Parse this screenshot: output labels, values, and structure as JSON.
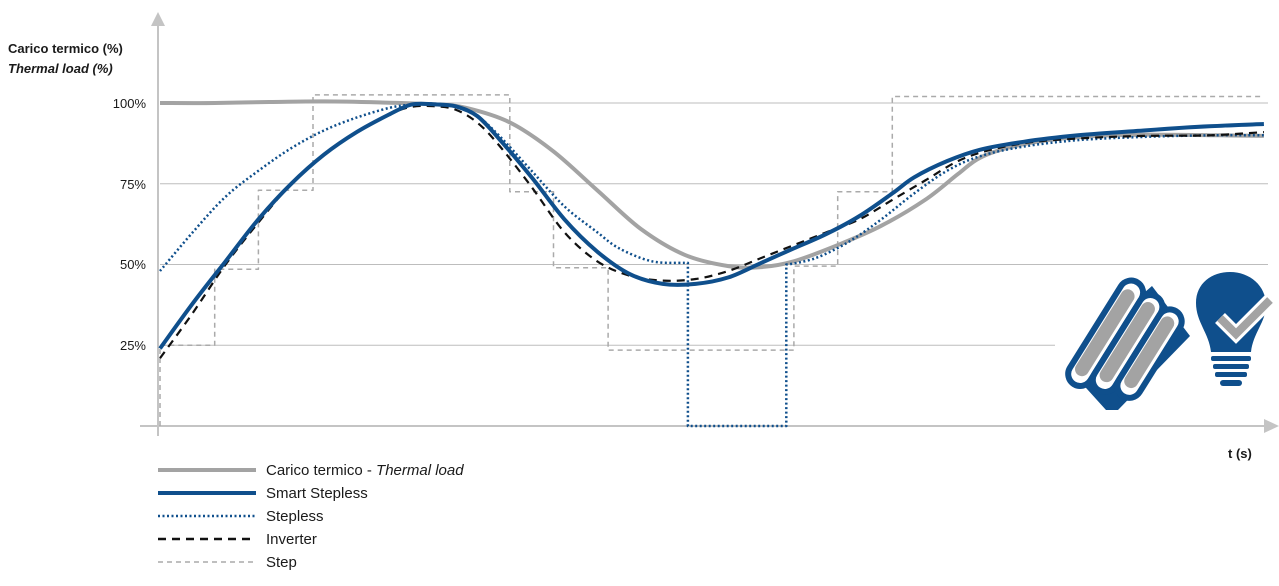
{
  "chart_data": {
    "type": "line",
    "ylabel": "Carico termico (%)",
    "ylabel_en": "Thermal load (%)",
    "xlabel": "t (s)",
    "yticks": [
      "100%",
      "75%",
      "50%",
      "25%"
    ],
    "ylim": [
      0,
      100
    ],
    "grid": true,
    "legend_placement": "bottom-left",
    "series": [
      {
        "name": "Carico termico",
        "name_en": "Thermal load",
        "style": "solid-thick",
        "color": "#a3a3a3",
        "points": [
          [
            0,
            100
          ],
          [
            5,
            100
          ],
          [
            10,
            100.3
          ],
          [
            15,
            100.5
          ],
          [
            20,
            100.2
          ],
          [
            25,
            99.6
          ],
          [
            28,
            98.5
          ],
          [
            32,
            94
          ],
          [
            36,
            85
          ],
          [
            40,
            73
          ],
          [
            44,
            61
          ],
          [
            48,
            53
          ],
          [
            52,
            49.5
          ],
          [
            55,
            49.2
          ],
          [
            58,
            51
          ],
          [
            62,
            56
          ],
          [
            66,
            62
          ],
          [
            70,
            70
          ],
          [
            73,
            78
          ],
          [
            75,
            83
          ],
          [
            78,
            86.5
          ],
          [
            82,
            88.8
          ],
          [
            87,
            90
          ],
          [
            92,
            90.2
          ],
          [
            97,
            90
          ],
          [
            101,
            89.8
          ]
        ]
      },
      {
        "name": "Smart Stepless",
        "style": "solid-thick",
        "color": "#0f4f8c",
        "points": [
          [
            0,
            24
          ],
          [
            3,
            38
          ],
          [
            6,
            51
          ],
          [
            9,
            64
          ],
          [
            12,
            75
          ],
          [
            15,
            84
          ],
          [
            18,
            91
          ],
          [
            21,
            96.5
          ],
          [
            23,
            99.5
          ],
          [
            25,
            99.6
          ],
          [
            27,
            99
          ],
          [
            29,
            96
          ],
          [
            31,
            89
          ],
          [
            34,
            77
          ],
          [
            37,
            64
          ],
          [
            40,
            54
          ],
          [
            43,
            47
          ],
          [
            46,
            44
          ],
          [
            49,
            44
          ],
          [
            52,
            46
          ],
          [
            55,
            50.5
          ],
          [
            58,
            55
          ],
          [
            61,
            59.5
          ],
          [
            64,
            65
          ],
          [
            67,
            72
          ],
          [
            69,
            77
          ],
          [
            72,
            82
          ],
          [
            75,
            85.5
          ],
          [
            79,
            88
          ],
          [
            84,
            90
          ],
          [
            90,
            91.5
          ],
          [
            96,
            92.8
          ],
          [
            101,
            93.5
          ]
        ]
      },
      {
        "name": "Stepless",
        "style": "dotted",
        "color": "#0f4f8c",
        "points": [
          [
            0,
            48
          ],
          [
            3,
            60
          ],
          [
            6,
            71
          ],
          [
            9,
            79
          ],
          [
            12,
            86
          ],
          [
            15,
            91.5
          ],
          [
            18,
            95.5
          ],
          [
            21,
            98.5
          ],
          [
            23,
            99.5
          ],
          [
            25,
            99.8
          ],
          [
            27,
            99
          ],
          [
            29,
            96
          ],
          [
            31,
            90
          ],
          [
            34,
            79
          ],
          [
            37,
            68
          ],
          [
            40,
            60
          ],
          [
            42,
            55
          ],
          [
            45,
            51
          ],
          [
            48,
            50.5
          ],
          [
            48.3,
            0
          ],
          [
            57.3,
            0
          ],
          [
            57.5,
            50
          ],
          [
            60,
            52
          ],
          [
            63,
            57
          ],
          [
            66,
            64
          ],
          [
            69,
            72
          ],
          [
            72,
            79
          ],
          [
            75,
            83.5
          ],
          [
            79,
            86.5
          ],
          [
            84,
            88.5
          ],
          [
            90,
            89.5
          ],
          [
            96,
            90
          ],
          [
            101,
            90
          ]
        ],
        "vertical_drop": {
          "from_x": 48.3,
          "to_x": 57.3,
          "to_value": 0
        }
      },
      {
        "name": "Inverter",
        "style": "dashed",
        "color": "#111111",
        "points": [
          [
            0,
            21
          ],
          [
            3,
            35
          ],
          [
            6,
            50
          ],
          [
            9,
            63
          ],
          [
            12,
            75
          ],
          [
            15,
            84
          ],
          [
            18,
            91
          ],
          [
            21,
            96.5
          ],
          [
            23,
            98.8
          ],
          [
            25,
            99
          ],
          [
            27,
            98
          ],
          [
            29,
            94
          ],
          [
            31,
            87
          ],
          [
            34,
            74
          ],
          [
            37,
            60
          ],
          [
            40,
            51
          ],
          [
            43,
            46.5
          ],
          [
            46,
            45
          ],
          [
            49,
            45.5
          ],
          [
            52,
            48
          ],
          [
            55,
            52
          ],
          [
            58,
            56
          ],
          [
            61,
            60
          ],
          [
            64,
            64
          ],
          [
            67,
            70
          ],
          [
            70,
            76
          ],
          [
            73,
            82
          ],
          [
            76,
            85.5
          ],
          [
            80,
            88
          ],
          [
            85,
            89.2
          ],
          [
            90,
            89.8
          ],
          [
            96,
            90
          ],
          [
            101,
            91
          ]
        ]
      },
      {
        "name": "Step",
        "style": "dashed-fine",
        "color": "#aaaaaa",
        "points": [
          [
            0,
            0
          ],
          [
            0,
            25
          ],
          [
            5,
            25
          ],
          [
            5,
            48.5
          ],
          [
            9,
            48.5
          ],
          [
            9,
            73
          ],
          [
            14,
            73
          ],
          [
            14,
            102.5
          ],
          [
            32,
            102.5
          ],
          [
            32,
            72.5
          ],
          [
            36,
            72.5
          ],
          [
            36,
            49
          ],
          [
            41,
            49
          ],
          [
            41,
            23.5
          ],
          [
            58,
            23.5
          ],
          [
            58,
            49.5
          ],
          [
            62,
            49.5
          ],
          [
            62,
            72.5
          ],
          [
            67,
            72.5
          ],
          [
            67,
            102
          ],
          [
            101,
            102
          ]
        ]
      }
    ]
  },
  "legend": {
    "items": [
      {
        "label": "Carico termico - ",
        "label_italic": "Thermal load"
      },
      {
        "label": "Smart Stepless"
      },
      {
        "label": "Stepless"
      },
      {
        "label": "Inverter"
      },
      {
        "label": "Step"
      }
    ]
  },
  "icons": {
    "radiator": "radiator-icon",
    "bulb": "lightbulb-check-icon"
  },
  "colors": {
    "gray_load": "#a3a3a3",
    "brand_blue": "#0f4f8c",
    "black": "#111111",
    "step_gray": "#aaaaaa",
    "axis_gray": "#bdbdbd"
  }
}
